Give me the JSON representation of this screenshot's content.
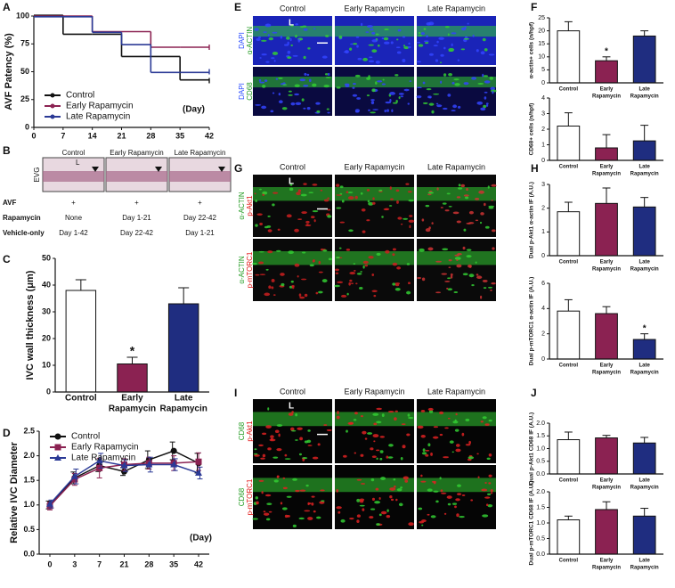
{
  "panel_letters": [
    "A",
    "B",
    "C",
    "D",
    "E",
    "F",
    "G",
    "H",
    "I",
    "J"
  ],
  "chart_data": [
    {
      "type": "step",
      "y_label": "AVF Patency (%)",
      "x_annotation": "(Day)",
      "x": [
        0,
        7,
        14,
        21,
        28,
        35,
        42
      ],
      "xlim": [
        0,
        42
      ],
      "xticks": [
        0,
        7,
        14,
        21,
        28,
        35,
        42
      ],
      "ylim": [
        0,
        100
      ],
      "yticks": [
        0,
        25,
        50,
        75,
        100
      ],
      "legend": "lower left",
      "series": [
        {
          "name": "Control",
          "color": "#111111",
          "values": [
            100,
            83,
            83,
            63,
            63,
            42,
            42
          ]
        },
        {
          "name": "Early Rapamycin",
          "color": "#8b2252",
          "values": [
            100,
            100,
            86,
            86,
            72,
            72,
            72
          ]
        },
        {
          "name": "Late Rapamycin",
          "color": "#2b3a96",
          "values": [
            100,
            100,
            86,
            75,
            50,
            50,
            50
          ]
        }
      ]
    },
    {
      "type": "bar",
      "y_label": "IVC wall thickness (μm)",
      "categories": [
        [
          "Control"
        ],
        [
          "Early",
          "Rapamycin"
        ],
        [
          "Late",
          "Rapamycin"
        ]
      ],
      "values": [
        38,
        10.5,
        33
      ],
      "errors": [
        4,
        2.5,
        6
      ],
      "significance": [
        null,
        "*",
        null
      ],
      "colors": [
        "#ffffff",
        "#8b2252",
        "#1f2d80"
      ],
      "ylim": [
        0,
        50
      ],
      "yticks": [
        0,
        10,
        20,
        30,
        40,
        50
      ]
    },
    {
      "type": "line",
      "y_label": "Relative IVC Diameter",
      "x_annotation": "(Day)",
      "categories": [
        "0",
        "3",
        "7",
        "21",
        "28",
        "35",
        "42"
      ],
      "legend": "upper left",
      "ylim": [
        0,
        2.5
      ],
      "yticks": [
        {
          "value": 0,
          "label": "0.0"
        },
        0.5,
        {
          "value": 1,
          "label": "1.0"
        },
        1.5,
        {
          "value": 2,
          "label": "2.0"
        },
        2.5
      ],
      "series": [
        {
          "name": "Control",
          "color": "#111111",
          "marker": "circle",
          "values": [
            1.0,
            1.55,
            1.8,
            1.68,
            1.92,
            2.1,
            1.85
          ],
          "errors": [
            0.08,
            0.12,
            0.12,
            0.08,
            0.18,
            0.18,
            0.2
          ]
        },
        {
          "name": "Early Rapamycin",
          "color": "#8b2252",
          "marker": "square",
          "values": [
            0.98,
            1.52,
            1.75,
            1.82,
            1.85,
            1.85,
            1.88
          ],
          "errors": [
            0.08,
            0.12,
            0.2,
            0.12,
            0.12,
            0.15,
            0.18
          ]
        },
        {
          "name": "Late Rapamycin",
          "color": "#2b3a96",
          "marker": "triangle",
          "values": [
            1.02,
            1.58,
            1.9,
            1.8,
            1.82,
            1.82,
            1.65
          ],
          "errors": [
            0.08,
            0.15,
            0.15,
            0.12,
            0.15,
            0.12,
            0.12
          ]
        }
      ]
    },
    {
      "type": "bar",
      "y_label": "α-actin+ cells (n/hpf)",
      "categories": [
        [
          "Control"
        ],
        [
          "Early",
          "Rapamycin"
        ],
        [
          "Late",
          "Rapamycin"
        ]
      ],
      "values": [
        20,
        8.5,
        18
      ],
      "errors": [
        3.5,
        1.5,
        2
      ],
      "significance": [
        null,
        "*",
        null
      ],
      "colors": [
        "#ffffff",
        "#8b2252",
        "#1f2d80"
      ],
      "ylim": [
        0,
        25
      ],
      "yticks": [
        0,
        5,
        10,
        15,
        20,
        25
      ]
    },
    {
      "type": "bar",
      "y_label": "CD68+ cells (n/hpf)",
      "categories": [
        [
          "Control"
        ],
        [
          "Early",
          "Rapamycin"
        ],
        [
          "Late",
          "Rapamycin"
        ]
      ],
      "values": [
        2.2,
        0.8,
        1.25
      ],
      "errors": [
        0.85,
        0.85,
        1.0
      ],
      "colors": [
        "#ffffff",
        "#8b2252",
        "#1f2d80"
      ],
      "ylim": [
        0,
        4
      ],
      "yticks": [
        0,
        1,
        2,
        3,
        4
      ]
    },
    {
      "type": "bar",
      "y_label": "Dual p-Akt1 α-actin IF (A.U.)",
      "categories": [
        [
          "Control"
        ],
        [
          "Early",
          "Rapamycin"
        ],
        [
          "Late",
          "Rapamycin"
        ]
      ],
      "values": [
        1.85,
        2.2,
        2.05
      ],
      "errors": [
        0.4,
        0.65,
        0.4
      ],
      "colors": [
        "#ffffff",
        "#8b2252",
        "#1f2d80"
      ],
      "ylim": [
        0,
        3
      ],
      "yticks": [
        0,
        1,
        2,
        3
      ]
    },
    {
      "type": "bar",
      "y_label": "Dual p-mTORC1 α-actin IF (A.U.)",
      "categories": [
        [
          "Control"
        ],
        [
          "Early",
          "Rapamycin"
        ],
        [
          "Late",
          "Rapamycin"
        ]
      ],
      "values": [
        3.8,
        3.6,
        1.55
      ],
      "errors": [
        0.9,
        0.55,
        0.45
      ],
      "significance": [
        null,
        null,
        "*"
      ],
      "colors": [
        "#ffffff",
        "#8b2252",
        "#1f2d80"
      ],
      "ylim": [
        0,
        6
      ],
      "yticks": [
        0,
        2,
        4,
        6
      ]
    },
    {
      "type": "bar",
      "y_label": "Dual p-Akt1 CD68 IF (A.U.)",
      "categories": [
        [
          "Control"
        ],
        [
          "Early",
          "Rapamycin"
        ],
        [
          "Late",
          "Rapamycin"
        ]
      ],
      "values": [
        1.35,
        1.42,
        1.22
      ],
      "errors": [
        0.3,
        0.1,
        0.22
      ],
      "colors": [
        "#ffffff",
        "#8b2252",
        "#1f2d80"
      ],
      "ylim": [
        0,
        2
      ],
      "yticks": [
        {
          "value": 0,
          "label": "0.0"
        },
        0.5,
        {
          "value": 1,
          "label": "1.0"
        },
        1.5,
        {
          "value": 2,
          "label": "2.0"
        }
      ]
    },
    {
      "type": "bar",
      "y_label": "Dual p-mTORC1 CD68 IF (A.U.)",
      "categories": [
        [
          "Control"
        ],
        [
          "Early",
          "Rapamycin"
        ],
        [
          "Late",
          "Rapamycin"
        ]
      ],
      "values": [
        1.1,
        1.43,
        1.22
      ],
      "errors": [
        0.12,
        0.25,
        0.25
      ],
      "colors": [
        "#ffffff",
        "#8b2252",
        "#1f2d80"
      ],
      "ylim": [
        0,
        2
      ],
      "yticks": [
        {
          "value": 0,
          "label": "0.0"
        },
        0.5,
        {
          "value": 1,
          "label": "1.0"
        },
        1.5,
        {
          "value": 2,
          "label": "2.0"
        }
      ]
    }
  ],
  "evg": {
    "stain": "EVG",
    "columns": [
      "Control",
      "Early Rapamycin",
      "Late Rapamycin"
    ],
    "lumen": "L",
    "table": [
      [
        "AVF",
        "+",
        "+",
        "+"
      ],
      [
        "Rapamycin",
        "None",
        "Day 1-21",
        "Day 22-42"
      ],
      [
        "Vehicle-only",
        "Day 1-42",
        "Day 22-42",
        "Day 1-21"
      ]
    ]
  },
  "micrographs": [
    {
      "columns": [
        "Control",
        "Early Rapamycin",
        "Late Rapamycin"
      ],
      "lumen": "L",
      "rows": [
        [
          "DAPI",
          "α-ACTIN"
        ],
        [
          "DAPI",
          "CD68"
        ]
      ],
      "label_colors": [
        "#2a4bff",
        "#1f9a1f"
      ]
    },
    {
      "columns": [
        "Control",
        "Early Rapamycin",
        "Late Rapamycin"
      ],
      "lumen": "L",
      "rows": [
        [
          "α-ACTIN",
          "p-Akt1"
        ],
        [
          "α-ACTIN",
          "p-mTORC1"
        ]
      ],
      "label_colors": [
        "#1f9a1f",
        "#e01010"
      ]
    },
    {
      "columns": [
        "Control",
        "Early Rapamycin",
        "Late Rapamycin"
      ],
      "lumen": "L",
      "rows": [
        [
          "CD68",
          "p-Akt1"
        ],
        [
          "CD68",
          "p-mTORC1"
        ]
      ],
      "label_colors": [
        "#1f9a1f",
        "#e01010"
      ]
    }
  ]
}
